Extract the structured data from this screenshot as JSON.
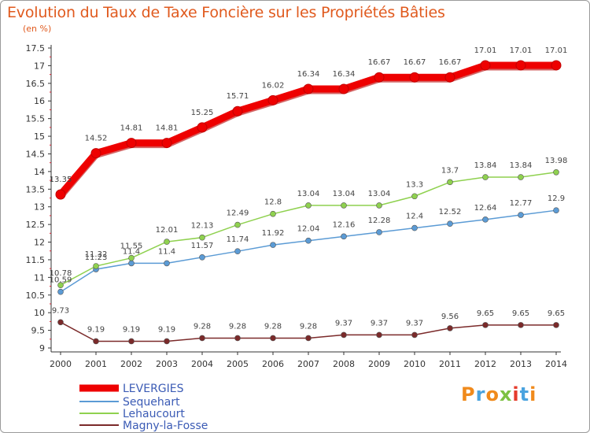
{
  "title": "Evolution du Taux de Taxe Foncière sur les Propriétés Bâties",
  "subtitle": "(en %)",
  "logo": {
    "text": "Proxiti",
    "colors": [
      "#f08a1c",
      "#4aa3df",
      "#f08a1c",
      "#7dc142",
      "#e53b2c",
      "#4aa3df",
      "#f08a1c"
    ]
  },
  "chart_data": {
    "type": "line",
    "title": "Evolution du Taux de Taxe Foncière sur les Propriétés Bâties",
    "ylabel": "(en %)",
    "xlabel": "",
    "x": [
      2000,
      2001,
      2002,
      2003,
      2004,
      2005,
      2006,
      2007,
      2008,
      2009,
      2010,
      2011,
      2012,
      2013,
      2014
    ],
    "ylim": [
      9,
      17.5
    ],
    "yticks": [
      "9",
      "9.5",
      "10",
      "10.5",
      "11",
      "11.5",
      "12",
      "12.5",
      "13",
      "13.5",
      "14",
      "14.5",
      "15",
      "15.5",
      "16",
      "16.5",
      "17",
      "17.5"
    ],
    "grid": false,
    "legend": "bottom-left",
    "series": [
      {
        "name": "LEVERGIES",
        "color": "#ee0000",
        "width": 9,
        "values": [
          13.35,
          14.52,
          14.81,
          14.81,
          15.25,
          15.71,
          16.02,
          16.34,
          16.34,
          16.67,
          16.67,
          16.67,
          17.01,
          17.01,
          17.01
        ],
        "labels": [
          "13.35",
          "14.52",
          "14.81",
          "14.81",
          "15.25",
          "15.71",
          "16.02",
          "16.34",
          "16.34",
          "16.67",
          "16.67",
          "16.67",
          "17.01",
          "17.01",
          "17.01"
        ]
      },
      {
        "name": "Sequehart",
        "color": "#5b9bd5",
        "width": 1.5,
        "values": [
          10.59,
          11.23,
          11.4,
          11.4,
          11.57,
          11.74,
          11.92,
          12.04,
          12.16,
          12.28,
          12.4,
          12.52,
          12.64,
          12.77,
          12.9
        ],
        "labels": [
          "10.59",
          "11.23",
          "11.4",
          "11.4",
          "11.57",
          "11.74",
          "11.92",
          "12.04",
          "12.16",
          "12.28",
          "12.4",
          "12.52",
          "12.64",
          "12.77",
          "12.9"
        ]
      },
      {
        "name": "Lehaucourt",
        "color": "#8fd14f",
        "width": 1.5,
        "values": [
          10.78,
          11.32,
          11.55,
          12.01,
          12.13,
          12.49,
          12.8,
          13.04,
          13.04,
          13.04,
          13.3,
          13.7,
          13.84,
          13.84,
          13.98
        ],
        "labels": [
          "10.78",
          "11.32",
          "11.55",
          "12.01",
          "12.13",
          "12.49",
          "12.8",
          "13.04",
          "13.04",
          "13.04",
          "13.3",
          "13.7",
          "13.84",
          "13.84",
          "13.98"
        ]
      },
      {
        "name": "Magny-la-Fosse",
        "color": "#7b2a2a",
        "width": 1.5,
        "values": [
          9.73,
          9.19,
          9.19,
          9.19,
          9.28,
          9.28,
          9.28,
          9.28,
          9.37,
          9.37,
          9.37,
          9.56,
          9.65,
          9.65,
          9.65
        ],
        "labels": [
          "9.73",
          "9.19",
          "9.19",
          "9.19",
          "9.28",
          "9.28",
          "9.28",
          "9.28",
          "9.37",
          "9.37",
          "9.37",
          "9.56",
          "9.65",
          "9.65",
          "9.65"
        ]
      }
    ]
  }
}
